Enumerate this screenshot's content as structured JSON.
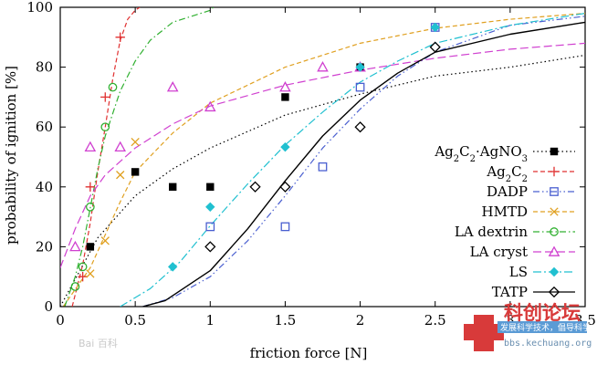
{
  "chart_data": {
    "type": "scatter",
    "title": "",
    "xlabel": "friction force [N]",
    "ylabel": "probability of ignition [%]",
    "xlim": [
      0,
      3.5
    ],
    "ylim": [
      0,
      100
    ],
    "xticks": [
      0,
      0.5,
      1,
      1.5,
      2,
      2.5,
      3,
      3.5
    ],
    "xtick_labels": [
      "0",
      "0.5",
      "1",
      "1.5",
      "2",
      "2.5",
      "3",
      "3.5"
    ],
    "yticks": [
      0,
      20,
      40,
      60,
      80,
      100
    ],
    "ytick_labels": [
      "0",
      "20",
      "40",
      "60",
      "80",
      "100"
    ],
    "legend_position": "center-right",
    "series": [
      {
        "name_main": "Ag",
        "name_sub1": "2",
        "name_mid1": "C",
        "name_sub2": "2",
        "name_mid2": "·AgNO",
        "name_sub3": "3",
        "marker": "filled-square",
        "line": "dotted",
        "color": "#000000",
        "x": [
          0.2,
          0.5,
          0.75,
          1.0,
          1.5,
          2.0
        ],
        "y": [
          20,
          45,
          40,
          40,
          70,
          80
        ],
        "fit": [
          [
            0,
            0
          ],
          [
            0.25,
            23
          ],
          [
            0.5,
            37
          ],
          [
            0.75,
            46
          ],
          [
            1,
            53
          ],
          [
            1.5,
            64
          ],
          [
            2,
            71
          ],
          [
            2.5,
            77
          ],
          [
            3,
            80
          ],
          [
            3.5,
            84
          ]
        ]
      },
      {
        "name_main": "Ag",
        "name_sub1": "2",
        "name_mid1": "C",
        "name_sub2": "2",
        "marker": "plus",
        "line": "dashed",
        "color": "#e03030",
        "x": [
          0.15,
          0.2,
          0.3,
          0.4
        ],
        "y": [
          10,
          40,
          70,
          90
        ],
        "fit": [
          [
            0.08,
            0
          ],
          [
            0.15,
            14
          ],
          [
            0.2,
            28
          ],
          [
            0.25,
            45
          ],
          [
            0.3,
            60
          ],
          [
            0.35,
            76
          ],
          [
            0.4,
            89
          ],
          [
            0.45,
            96
          ],
          [
            0.5,
            99
          ],
          [
            0.53,
            100
          ]
        ]
      },
      {
        "name_main": "DADP",
        "marker": "open-square",
        "line": "dash-dot-dot",
        "color": "#4a5fd0",
        "x": [
          1.0,
          1.5,
          1.75,
          2.0,
          2.5
        ],
        "y": [
          26.7,
          26.7,
          46.7,
          73.3,
          93.3
        ],
        "fit": [
          [
            0.55,
            0
          ],
          [
            0.75,
            3
          ],
          [
            1,
            10
          ],
          [
            1.25,
            22
          ],
          [
            1.5,
            37
          ],
          [
            1.75,
            53
          ],
          [
            2,
            66
          ],
          [
            2.25,
            77
          ],
          [
            2.5,
            85
          ],
          [
            3,
            94
          ],
          [
            3.5,
            97
          ]
        ]
      },
      {
        "name_main": "HMTD",
        "marker": "cross",
        "line": "dashed",
        "color": "#e0a020",
        "x": [
          0.2,
          0.3,
          0.4,
          0.5
        ],
        "y": [
          11,
          22,
          44,
          55
        ],
        "fit": [
          [
            0.02,
            0
          ],
          [
            0.2,
            13
          ],
          [
            0.3,
            24
          ],
          [
            0.4,
            35
          ],
          [
            0.5,
            45
          ],
          [
            0.75,
            58
          ],
          [
            1,
            68
          ],
          [
            1.5,
            80
          ],
          [
            2,
            88
          ],
          [
            2.5,
            93
          ],
          [
            3,
            96
          ],
          [
            3.5,
            98
          ]
        ]
      },
      {
        "name_main": "LA dextrin",
        "marker": "open-circle",
        "line": "dash-dot",
        "color": "#30b030",
        "x": [
          0.1,
          0.15,
          0.2,
          0.3,
          0.35
        ],
        "y": [
          6.7,
          13.3,
          33.3,
          60,
          73.3
        ],
        "fit": [
          [
            0.03,
            0
          ],
          [
            0.1,
            10
          ],
          [
            0.15,
            20
          ],
          [
            0.2,
            33
          ],
          [
            0.25,
            46
          ],
          [
            0.3,
            57
          ],
          [
            0.4,
            72
          ],
          [
            0.5,
            82
          ],
          [
            0.6,
            89
          ],
          [
            0.75,
            95
          ],
          [
            1,
            99
          ],
          [
            1.02,
            100
          ]
        ]
      },
      {
        "name_main": "LA cryst",
        "marker": "open-triangle",
        "line": "long-dashed",
        "color": "#d040d0",
        "x": [
          0.1,
          0.2,
          0.4,
          0.75,
          1.0,
          1.5,
          1.75,
          2.0
        ],
        "y": [
          20,
          53.3,
          53.3,
          73.3,
          66.7,
          73.3,
          80,
          80
        ],
        "fit": [
          [
            0,
            13
          ],
          [
            0.1,
            26
          ],
          [
            0.2,
            37
          ],
          [
            0.3,
            44
          ],
          [
            0.5,
            53
          ],
          [
            0.75,
            61
          ],
          [
            1,
            67
          ],
          [
            1.5,
            74
          ],
          [
            2,
            79
          ],
          [
            2.5,
            83
          ],
          [
            3,
            86
          ],
          [
            3.5,
            88
          ]
        ]
      },
      {
        "name_main": "LS",
        "marker": "filled-diamond",
        "line": "dash-dot-long",
        "color": "#20c0d0",
        "x": [
          0.75,
          1.0,
          1.5,
          2.0,
          2.5
        ],
        "y": [
          13.3,
          33.3,
          53.3,
          80,
          93.3
        ],
        "fit": [
          [
            0.4,
            0
          ],
          [
            0.6,
            6
          ],
          [
            0.8,
            15
          ],
          [
            1,
            27
          ],
          [
            1.25,
            41
          ],
          [
            1.5,
            54
          ],
          [
            1.75,
            65
          ],
          [
            2,
            75
          ],
          [
            2.25,
            82
          ],
          [
            2.5,
            88
          ],
          [
            3,
            94
          ],
          [
            3.5,
            98
          ]
        ]
      },
      {
        "name_main": "TATP",
        "marker": "open-diamond",
        "line": "solid",
        "color": "#000000",
        "x": [
          1.0,
          1.3,
          1.5,
          2.0,
          2.5
        ],
        "y": [
          20,
          40,
          40,
          60,
          86.7
        ],
        "fit": [
          [
            0.55,
            0
          ],
          [
            0.7,
            2
          ],
          [
            1,
            12
          ],
          [
            1.25,
            26
          ],
          [
            1.5,
            42
          ],
          [
            1.75,
            57
          ],
          [
            2,
            69
          ],
          [
            2.25,
            78
          ],
          [
            2.5,
            85
          ],
          [
            3,
            91
          ],
          [
            3.5,
            95
          ]
        ]
      }
    ]
  },
  "watermark": {
    "brand": "科创论坛",
    "slogan": "发展科学技术，倡导科学方法",
    "url": "bbs.kechuang.org",
    "baidu": "Bai 百科"
  }
}
